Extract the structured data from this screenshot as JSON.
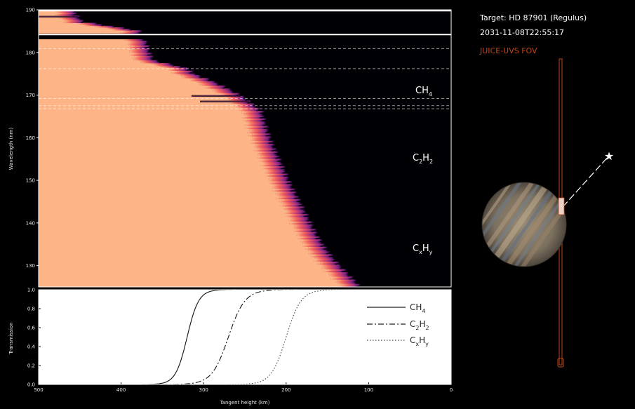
{
  "header": {
    "target_line": "Target: HD 87901 (Regulus)",
    "time_line": "2031-11-08T22:55:17",
    "fov_label": "JUICE-UVS FOV"
  },
  "colors": {
    "high": "#fdb487",
    "mid": "#f1605d",
    "low": "#721f81",
    "dark": "#000004",
    "fov": "#c0461b",
    "planet_a": "#8c7a62",
    "planet_b": "#6b7f96"
  },
  "top_panel": {
    "ylabel": "Wavelength (nm)",
    "y_ticks": [
      "130",
      "140",
      "150",
      "160",
      "170",
      "180",
      "190"
    ],
    "species_labels": [
      {
        "name": "CH",
        "sub": "4"
      },
      {
        "name": "C",
        "sub": "2",
        "name2": "H",
        "sub2": "2"
      },
      {
        "name": "C",
        "sub": "x",
        "name2": "H",
        "sub2": "y"
      }
    ]
  },
  "chart_data": [
    {
      "type": "heatmap",
      "title": "",
      "xlabel": "Tangent height (km)",
      "ylabel": "Wavelength (nm)",
      "xlim": [
        500,
        0
      ],
      "ylim": [
        125,
        190
      ],
      "colormap": "magma",
      "y_ticks": [
        130,
        140,
        150,
        160,
        170,
        180,
        190
      ],
      "profile_edge_height_km": [
        [
          125,
          110
        ],
        [
          128,
          125
        ],
        [
          131,
          140
        ],
        [
          134,
          152
        ],
        [
          137,
          162
        ],
        [
          140,
          170
        ],
        [
          143,
          178
        ],
        [
          146,
          186
        ],
        [
          149,
          194
        ],
        [
          152,
          201
        ],
        [
          155,
          208
        ],
        [
          158,
          215
        ],
        [
          161,
          221
        ],
        [
          164,
          226
        ],
        [
          166,
          229
        ],
        [
          169,
          248
        ],
        [
          171,
          266
        ],
        [
          173,
          287
        ],
        [
          175,
          313
        ],
        [
          176,
          317
        ],
        [
          178,
          360
        ],
        [
          180,
          365
        ],
        [
          182,
          368
        ],
        [
          184,
          372
        ],
        [
          185,
          378
        ],
        [
          187,
          445
        ],
        [
          189,
          455
        ],
        [
          190,
          455
        ]
      ],
      "gap_band_nm": [
        183.0,
        184.2
      ],
      "absorption_bands_nm": [
        168.5,
        169.8,
        188.4
      ],
      "solid_lines_nm": [
        184.2,
        189.8
      ],
      "dashed_lines_nm": [
        166.8,
        167.5,
        169.2,
        176.2,
        180.9
      ]
    },
    {
      "type": "line",
      "xlabel": "Tangent height (km)",
      "ylabel": "Transmission",
      "xlim": [
        500,
        0
      ],
      "ylim": [
        0.0,
        1.0
      ],
      "x_ticks": [
        500,
        400,
        300,
        200,
        100,
        0
      ],
      "y_ticks": [
        0.0,
        0.2,
        0.4,
        0.6,
        0.8,
        1.0
      ],
      "legend_position": "upper right",
      "series": [
        {
          "name": "CH4",
          "style": "solid",
          "x50": 320,
          "width": 7
        },
        {
          "name": "C2H2",
          "style": "dashdot",
          "x50": 270,
          "width": 10
        },
        {
          "name": "CxHy",
          "style": "dotted",
          "x50": 200,
          "width": 9
        }
      ]
    }
  ]
}
